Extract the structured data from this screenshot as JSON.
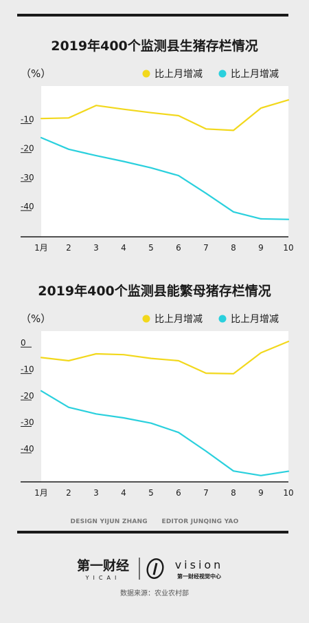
{
  "charts": [
    {
      "title": "2019年400个监测县生猪存栏情况",
      "unit": "（%）",
      "legend": [
        "比上月增减",
        "比上月增减"
      ]
    },
    {
      "title": "2019年400个监测县能繁母猪存栏情况",
      "unit": "（%）",
      "legend": [
        "比上月增减",
        "比上月增减"
      ]
    }
  ],
  "credits": {
    "design_label": "DESIGN",
    "design_name": "YIJUN ZHANG",
    "editor_label": "EDITOR",
    "editor_name": "JUNQING YAO"
  },
  "branding": {
    "yicai_cn": "第一财经",
    "yicai_en": "YICAI",
    "vision_en": "vision",
    "vision_cn": "第一财经视觉中心"
  },
  "source": "数据来源：农业农村部",
  "colors": {
    "yellow": "#f2d81c",
    "cyan": "#2ad0dd",
    "dark": "#1a1a1a",
    "plot_bg": "#ffffff",
    "page_bg": "#ececec"
  },
  "chart_data": [
    {
      "type": "line",
      "title": "2019年400个监测县生猪存栏情况",
      "ylabel": "（%）",
      "categories": [
        "1月",
        "2",
        "3",
        "4",
        "5",
        "6",
        "7",
        "8",
        "9",
        "10"
      ],
      "yticks": [
        -10,
        -20,
        -30,
        -40
      ],
      "ylim": [
        -50,
        2
      ],
      "grid": false,
      "legend_position": "top-right",
      "series": [
        {
          "name": "比上月增减",
          "color": "#f2d81c",
          "values": [
            -9.2,
            -9.0,
            -4.7,
            -6.0,
            -7.2,
            -8.2,
            -12.8,
            -13.3,
            -5.6,
            -2.8
          ]
        },
        {
          "name": "比上月增减",
          "color": "#2ad0dd",
          "values": [
            -15.8,
            -19.8,
            -22.0,
            -24.0,
            -26.2,
            -28.9,
            -35.0,
            -41.4,
            -43.8,
            -44.0
          ]
        }
      ]
    },
    {
      "type": "line",
      "title": "2019年400个监测县能繁母猪存栏情况",
      "ylabel": "（%）",
      "categories": [
        "1月",
        "2",
        "3",
        "4",
        "5",
        "6",
        "7",
        "8",
        "9",
        "10"
      ],
      "yticks": [
        0,
        -10,
        -20,
        -30,
        -40
      ],
      "ylim": [
        -52,
        5
      ],
      "grid": false,
      "legend_position": "top-right",
      "series": [
        {
          "name": "比上月增减",
          "color": "#f2d81c",
          "values": [
            -5.0,
            -6.2,
            -3.6,
            -3.9,
            -5.3,
            -6.2,
            -10.9,
            -11.1,
            -3.2,
            1.1
          ]
        },
        {
          "name": "比上月增减",
          "color": "#2ad0dd",
          "values": [
            -17.6,
            -23.8,
            -26.3,
            -27.8,
            -29.8,
            -33.3,
            -40.4,
            -47.9,
            -49.6,
            -48.0
          ]
        }
      ]
    }
  ]
}
